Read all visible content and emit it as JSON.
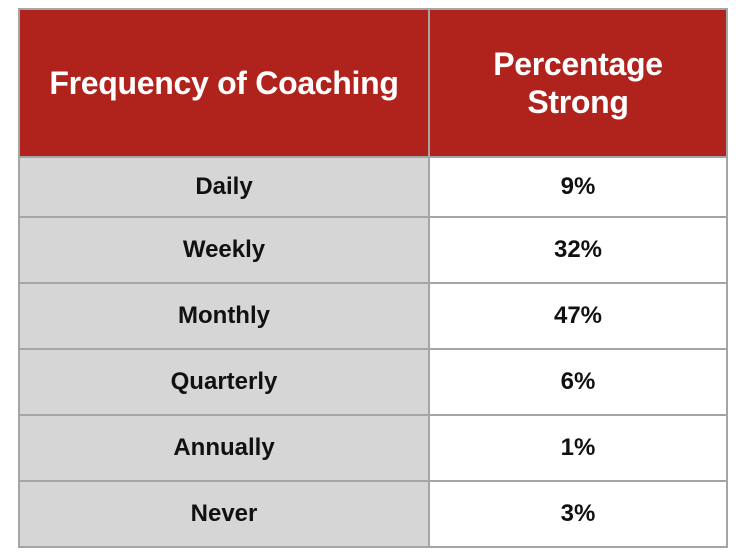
{
  "table": {
    "headers": [
      "Frequency of Coaching",
      "Percentage Strong"
    ],
    "rows": [
      {
        "frequency": "Daily",
        "percentage": "9%"
      },
      {
        "frequency": "Weekly",
        "percentage": "32%"
      },
      {
        "frequency": "Monthly",
        "percentage": "47%"
      },
      {
        "frequency": "Quarterly",
        "percentage": "6%"
      },
      {
        "frequency": "Annually",
        "percentage": "1%"
      },
      {
        "frequency": "Never",
        "percentage": "3%"
      }
    ]
  },
  "colors": {
    "header_background": "#b0231d",
    "header_text": "#ffffff",
    "label_column_background": "#d7d6d6",
    "value_column_background": "#ffffff",
    "border": "#a5a5a5"
  }
}
